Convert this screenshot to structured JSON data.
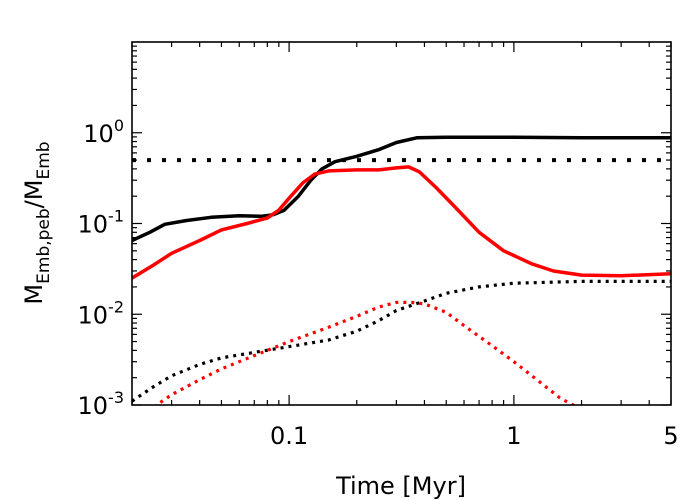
{
  "chart_data": {
    "type": "line",
    "xlabel": "Time [Myr]",
    "ylabel": {
      "base": "M",
      "sub1": "Emb,peb",
      "slash": "/",
      "base2": "M",
      "sub2": "Emb"
    },
    "xscale": "log",
    "yscale": "log",
    "xlim": [
      0.02,
      5
    ],
    "ylim": [
      0.001,
      10
    ],
    "x_ticks": [
      {
        "value": 0.1,
        "label": "0.1"
      },
      {
        "value": 1,
        "label": "1"
      },
      {
        "value": 5,
        "label": "5"
      }
    ],
    "y_ticks": [
      {
        "value": 0.001,
        "base": "10",
        "exp": "-3"
      },
      {
        "value": 0.01,
        "base": "10",
        "exp": "-2"
      },
      {
        "value": 0.1,
        "base": "10",
        "exp": "-1"
      },
      {
        "value": 1,
        "base": "10",
        "exp": "0"
      }
    ],
    "series": [
      {
        "name": "black-solid",
        "color": "#000000",
        "style": "solid",
        "points": [
          [
            0.02,
            0.065
          ],
          [
            0.024,
            0.08
          ],
          [
            0.028,
            0.098
          ],
          [
            0.035,
            0.108
          ],
          [
            0.045,
            0.117
          ],
          [
            0.06,
            0.122
          ],
          [
            0.075,
            0.12
          ],
          [
            0.085,
            0.125
          ],
          [
            0.095,
            0.14
          ],
          [
            0.11,
            0.2
          ],
          [
            0.125,
            0.3
          ],
          [
            0.14,
            0.4
          ],
          [
            0.16,
            0.48
          ],
          [
            0.2,
            0.55
          ],
          [
            0.25,
            0.65
          ],
          [
            0.3,
            0.78
          ],
          [
            0.37,
            0.88
          ],
          [
            0.5,
            0.89
          ],
          [
            1,
            0.89
          ],
          [
            2,
            0.88
          ],
          [
            5,
            0.88
          ]
        ]
      },
      {
        "name": "red-solid",
        "color": "#ff0000",
        "style": "solid",
        "points": [
          [
            0.02,
            0.025
          ],
          [
            0.025,
            0.035
          ],
          [
            0.03,
            0.047
          ],
          [
            0.04,
            0.065
          ],
          [
            0.05,
            0.085
          ],
          [
            0.065,
            0.1
          ],
          [
            0.08,
            0.115
          ],
          [
            0.09,
            0.14
          ],
          [
            0.1,
            0.19
          ],
          [
            0.115,
            0.28
          ],
          [
            0.13,
            0.35
          ],
          [
            0.15,
            0.38
          ],
          [
            0.2,
            0.39
          ],
          [
            0.25,
            0.39
          ],
          [
            0.3,
            0.41
          ],
          [
            0.34,
            0.42
          ],
          [
            0.38,
            0.37
          ],
          [
            0.45,
            0.25
          ],
          [
            0.55,
            0.15
          ],
          [
            0.7,
            0.08
          ],
          [
            0.9,
            0.05
          ],
          [
            1.2,
            0.036
          ],
          [
            1.5,
            0.03
          ],
          [
            2,
            0.027
          ],
          [
            3,
            0.0265
          ],
          [
            5,
            0.028
          ]
        ]
      },
      {
        "name": "black-dotted-horizontal",
        "color": "#000000",
        "style": "dotted",
        "points": [
          [
            0.02,
            0.5
          ],
          [
            5,
            0.5
          ]
        ]
      },
      {
        "name": "black-dotted",
        "color": "#000000",
        "style": "dotted",
        "points": [
          [
            0.02,
            0.0011
          ],
          [
            0.025,
            0.0016
          ],
          [
            0.03,
            0.0021
          ],
          [
            0.04,
            0.0028
          ],
          [
            0.05,
            0.0033
          ],
          [
            0.07,
            0.0038
          ],
          [
            0.1,
            0.0044
          ],
          [
            0.15,
            0.0052
          ],
          [
            0.2,
            0.0065
          ],
          [
            0.25,
            0.0085
          ],
          [
            0.3,
            0.011
          ],
          [
            0.4,
            0.014
          ],
          [
            0.5,
            0.017
          ],
          [
            0.7,
            0.02
          ],
          [
            1,
            0.022
          ],
          [
            2,
            0.023
          ],
          [
            5,
            0.023
          ]
        ]
      },
      {
        "name": "red-dotted",
        "color": "#ff0000",
        "style": "dotted",
        "points": [
          [
            0.025,
            0.00095
          ],
          [
            0.03,
            0.0013
          ],
          [
            0.04,
            0.0019
          ],
          [
            0.05,
            0.0025
          ],
          [
            0.07,
            0.0035
          ],
          [
            0.1,
            0.005
          ],
          [
            0.15,
            0.0072
          ],
          [
            0.2,
            0.0095
          ],
          [
            0.25,
            0.012
          ],
          [
            0.3,
            0.0135
          ],
          [
            0.35,
            0.0135
          ],
          [
            0.4,
            0.013
          ],
          [
            0.5,
            0.0105
          ],
          [
            0.6,
            0.0075
          ],
          [
            0.8,
            0.0045
          ],
          [
            1,
            0.003
          ],
          [
            1.3,
            0.0018
          ],
          [
            1.6,
            0.0012
          ],
          [
            1.9,
            0.00095
          ]
        ]
      }
    ]
  }
}
